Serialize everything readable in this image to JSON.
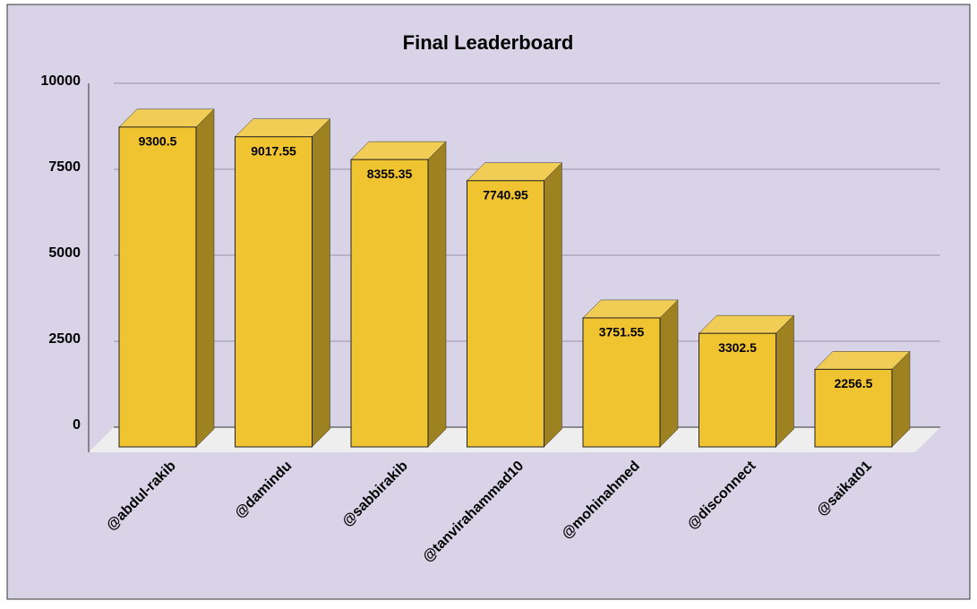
{
  "chart_data": {
    "type": "bar3d",
    "title": "Final Leaderboard",
    "categories": [
      "@abdul-rakib",
      "@damindu",
      "@sabbirakib",
      "@tanvirahammad10",
      "@mohinahmed",
      "@disconnect",
      "@saikat01"
    ],
    "values": [
      9300.5,
      9017.55,
      8355.35,
      7740.95,
      3751.55,
      3302.5,
      2256.5
    ],
    "color": "#f0c330",
    "ylim": [
      0,
      10000
    ],
    "yticks": [
      0,
      2500,
      5000,
      7500,
      10000
    ],
    "grid": true
  }
}
